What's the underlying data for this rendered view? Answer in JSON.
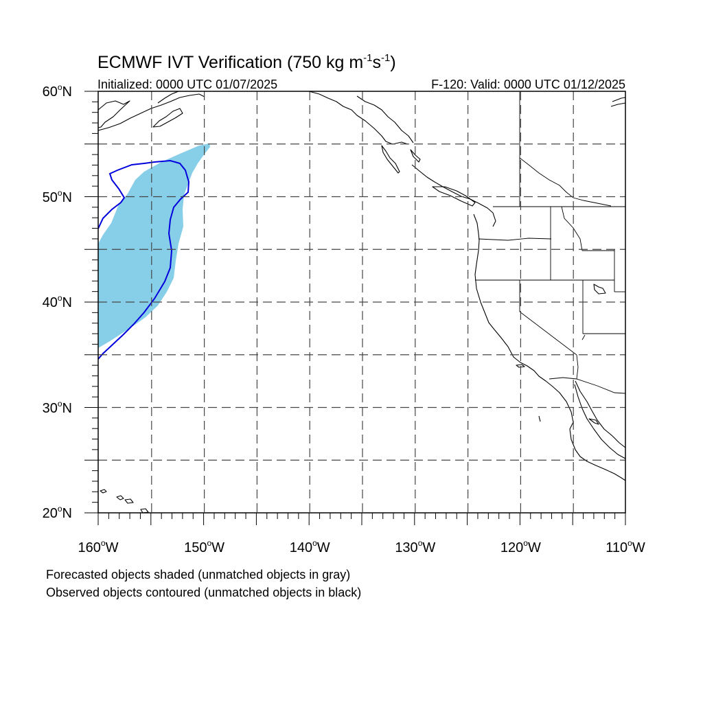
{
  "title": {
    "main": "ECMWF IVT Verification (750 kg m",
    "sup1": "-1",
    "mid": "s",
    "sup2": "-1",
    "end": ")"
  },
  "subtitle": {
    "left": "Initialized: 0000 UTC 01/07/2025",
    "right": "F-120: Valid: 0000 UTC 01/12/2025"
  },
  "map": {
    "lon_range": [
      -160,
      -110
    ],
    "lat_range": [
      20,
      60
    ],
    "colors": {
      "forecast_fill": "#87CEE8",
      "observed_contour": "#0000DD",
      "frame": "#000000",
      "grid": "#444444"
    }
  },
  "lat_labels": {
    "l60": "60",
    "l50": "50",
    "l40": "40",
    "l30": "30",
    "l20": "20"
  },
  "lon_labels": {
    "w160": "160",
    "w150": "150",
    "w140": "140",
    "w130": "130",
    "w120": "120",
    "w110": "110"
  },
  "degree_symbol": "o",
  "hemi": {
    "north": "N",
    "west": "W"
  },
  "footer": {
    "line1": "Forecasted objects shaded (unmatched objects in gray)",
    "line2": "Observed objects contoured (unmatched objects in black)"
  }
}
